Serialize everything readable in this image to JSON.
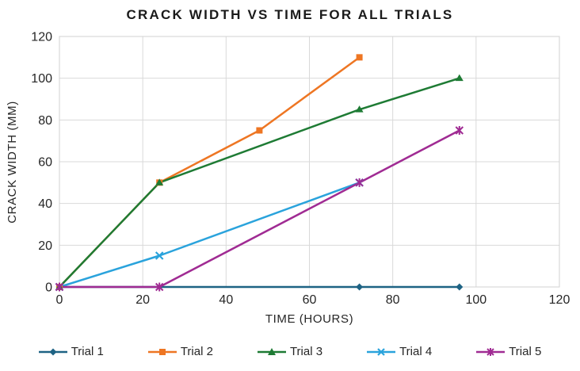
{
  "chart_data": {
    "type": "line",
    "title": "CRACK WIDTH VS TIME FOR ALL TRIALS",
    "xlabel": "TIME (HOURS)",
    "ylabel": "CRACK WIDTH (MM)",
    "xlim": [
      0,
      120
    ],
    "ylim": [
      0,
      120
    ],
    "x_ticks": [
      0,
      20,
      40,
      60,
      80,
      100,
      120
    ],
    "y_ticks": [
      0,
      20,
      40,
      60,
      80,
      100,
      120
    ],
    "grid": true,
    "legend_position": "bottom-center",
    "style": {
      "grid_color": "#d9d9d9",
      "border_color": "#d2d2d2",
      "tick_text_color": "#262626",
      "title_color": "#1a1a1a",
      "background": "#ffffff"
    },
    "series": [
      {
        "name": "Trial 1",
        "color": "#1e6384",
        "marker": "diamond",
        "x": [
          0,
          72,
          96
        ],
        "y": [
          0,
          0,
          0
        ]
      },
      {
        "name": "Trial 2",
        "color": "#ee7623",
        "marker": "square",
        "x": [
          0,
          24,
          48,
          72
        ],
        "y": [
          0,
          50,
          75,
          110
        ]
      },
      {
        "name": "Trial 3",
        "color": "#1e7b34",
        "marker": "triangle",
        "x": [
          0,
          24,
          72,
          96
        ],
        "y": [
          0,
          50,
          85,
          100
        ]
      },
      {
        "name": "Trial 4",
        "color": "#2aa3dc",
        "marker": "x",
        "x": [
          0,
          24,
          72
        ],
        "y": [
          0,
          15,
          50
        ]
      },
      {
        "name": "Trial 5",
        "color": "#a02b93",
        "marker": "asterisk",
        "x": [
          0,
          24,
          72,
          96
        ],
        "y": [
          0,
          0,
          50,
          75
        ]
      }
    ]
  }
}
